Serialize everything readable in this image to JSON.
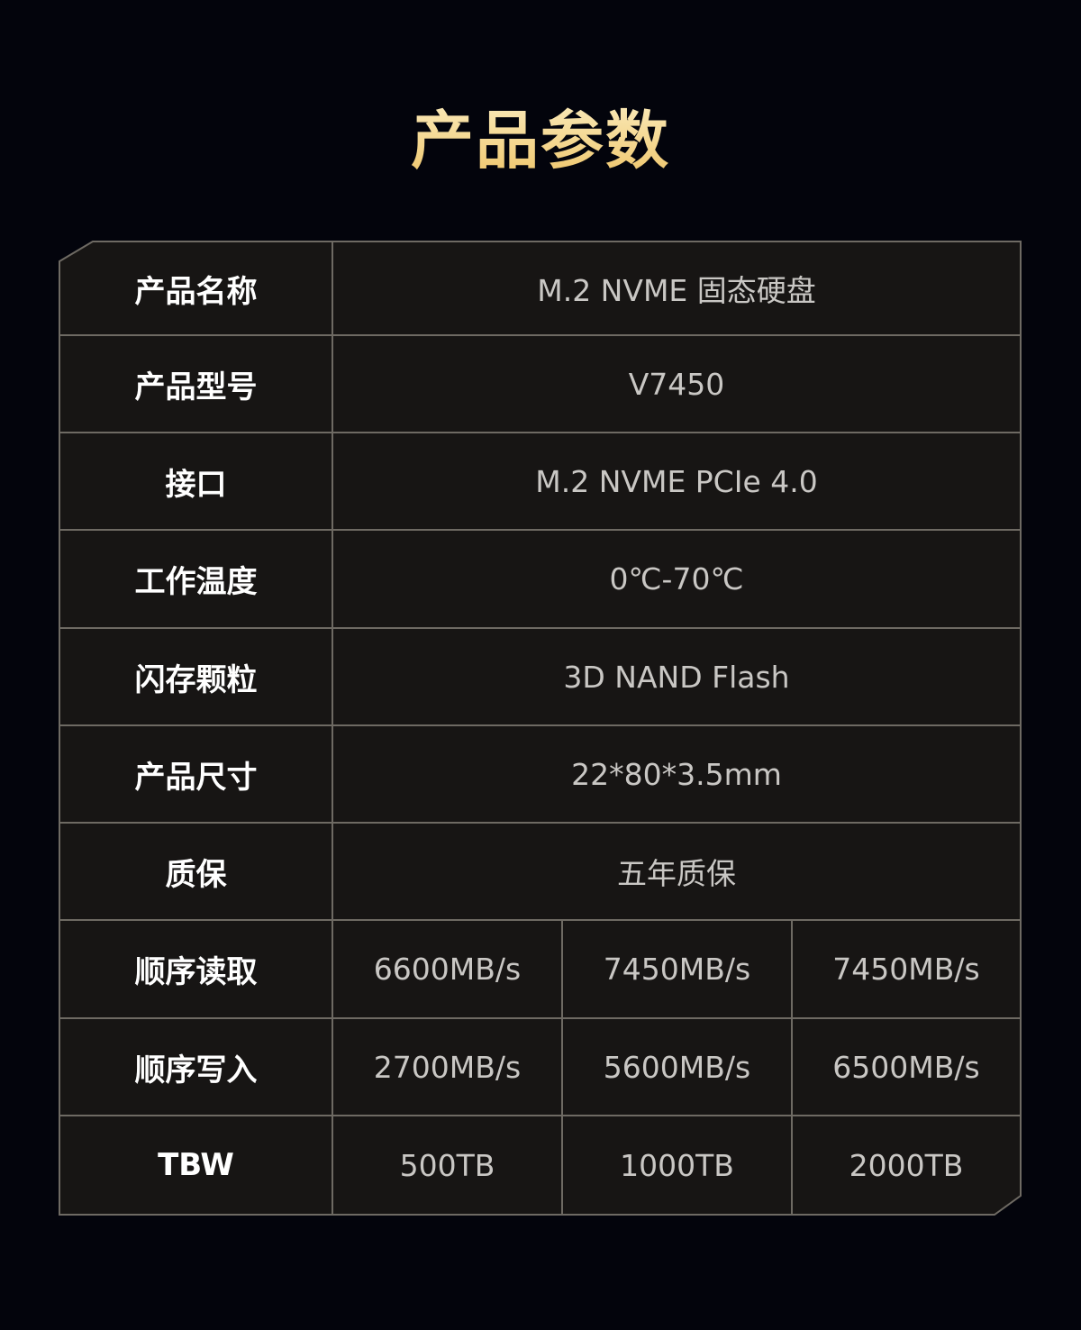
{
  "title": "产品参数",
  "rows": [
    {
      "label": "产品名称",
      "value": "M.2 NVME 固态硬盘"
    },
    {
      "label": "产品型号",
      "value": "V7450"
    },
    {
      "label": "接口",
      "value": "M.2 NVME PCIe 4.0"
    },
    {
      "label": "工作温度",
      "value": "0℃-70℃"
    },
    {
      "label": "闪存颗粒",
      "value": "3D NAND Flash"
    },
    {
      "label": "产品尺寸",
      "value": "22*80*3.5mm"
    },
    {
      "label": "质保",
      "value": "五年质保"
    },
    {
      "label": "顺序读取",
      "values": [
        "6600MB/s",
        "7450MB/s",
        "7450MB/s"
      ]
    },
    {
      "label": "顺序写入",
      "values": [
        "2700MB/s",
        "5600MB/s",
        "6500MB/s"
      ]
    },
    {
      "label": "TBW",
      "values": [
        "500TB",
        "1000TB",
        "2000TB"
      ]
    }
  ],
  "colors": {
    "background": "#03040c",
    "table": "#171514",
    "border": "#6e6a63",
    "title_gold": "#f4d68e"
  }
}
